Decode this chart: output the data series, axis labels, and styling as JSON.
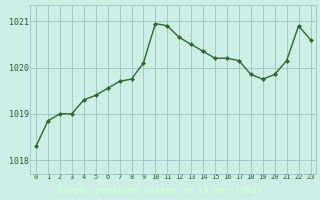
{
  "x": [
    0,
    1,
    2,
    3,
    4,
    5,
    6,
    7,
    8,
    9,
    10,
    11,
    12,
    13,
    14,
    15,
    16,
    17,
    18,
    19,
    20,
    21,
    22,
    23
  ],
  "y": [
    1018.3,
    1018.85,
    1019.0,
    1019.0,
    1019.3,
    1019.4,
    1019.55,
    1019.7,
    1019.75,
    1020.1,
    1020.95,
    1020.9,
    1020.65,
    1020.5,
    1020.35,
    1020.2,
    1020.2,
    1020.15,
    1019.85,
    1019.75,
    1019.85,
    1020.15,
    1020.9,
    1020.6
  ],
  "ylim_min": 1017.7,
  "ylim_max": 1021.35,
  "yticks": [
    1018,
    1019,
    1020,
    1021
  ],
  "xticks": [
    0,
    1,
    2,
    3,
    4,
    5,
    6,
    7,
    8,
    9,
    10,
    11,
    12,
    13,
    14,
    15,
    16,
    17,
    18,
    19,
    20,
    21,
    22,
    23
  ],
  "line_color": "#2d6a2d",
  "marker_color": "#2d6a2d",
  "bg_color": "#cceee4",
  "grid_color": "#99bbbb",
  "xlabel": "Graphe pression niveau de la mer (hPa)",
  "xlabel_bg": "#336633",
  "xlabel_fg": "#ccffcc",
  "tick_label_color": "#2d5a2d",
  "marker_size": 2.0,
  "line_width": 1.0
}
